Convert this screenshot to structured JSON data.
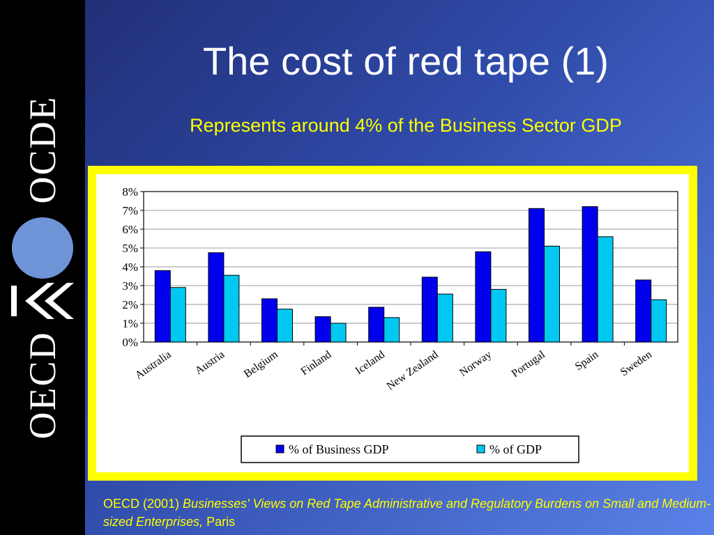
{
  "slide": {
    "title": "The cost of red tape (1)",
    "subtitle": "Represents around 4% of the Business Sector GDP"
  },
  "logo": {
    "text_top": "OCDE",
    "text_bottom": "OECD",
    "circle_color": "#6f95d8"
  },
  "source": {
    "prefix": "OECD (2001) ",
    "title": "Businesses' Views on Red Tape Administrative and Regulatory Burdens on Small and Medium-sized Enterprises,",
    "suffix": " Paris"
  },
  "chart_data": {
    "type": "bar",
    "title": "",
    "xlabel": "",
    "ylabel": "",
    "categories": [
      "Australia",
      "Austria",
      "Belgium",
      "Finland",
      "Iceland",
      "New Zealand",
      "Norway",
      "Portugal",
      "Spain",
      "Sweden"
    ],
    "series": [
      {
        "name": "% of Business GDP",
        "color": "#0000ee",
        "values": [
          3.8,
          4.75,
          2.3,
          1.35,
          1.85,
          3.45,
          4.8,
          7.1,
          7.2,
          3.3
        ]
      },
      {
        "name": "% of GDP",
        "color": "#00c8f0",
        "values": [
          2.9,
          3.55,
          1.75,
          1.0,
          1.3,
          2.55,
          2.8,
          5.1,
          5.6,
          2.25
        ]
      }
    ],
    "ylim": [
      0,
      8
    ],
    "yticks": [
      "0%",
      "1%",
      "2%",
      "3%",
      "4%",
      "5%",
      "6%",
      "7%",
      "8%"
    ],
    "grid": true,
    "legend_position": "bottom"
  },
  "colors": {
    "frame": "#ffff00",
    "title_text": "#ffffff",
    "accent_text": "#ffff00"
  }
}
